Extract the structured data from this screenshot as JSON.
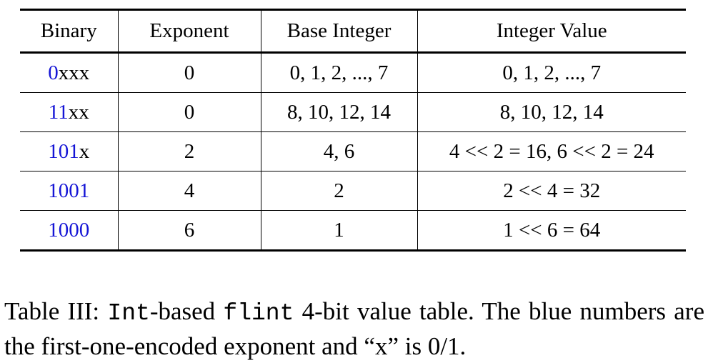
{
  "table": {
    "headers": [
      "Binary",
      "Exponent",
      "Base Integer",
      "Integer Value"
    ],
    "rows": [
      {
        "binary_prefix": "0",
        "binary_suffix": "xxx",
        "exponent": "0",
        "base_integer": "0, 1, 2, ..., 7",
        "integer_value": "0, 1, 2, ..., 7"
      },
      {
        "binary_prefix": "11",
        "binary_suffix": "xx",
        "exponent": "0",
        "base_integer": "8, 10, 12, 14",
        "integer_value": "8, 10, 12, 14"
      },
      {
        "binary_prefix": "101",
        "binary_suffix": "x",
        "exponent": "2",
        "base_integer": "4, 6",
        "integer_value": "4 << 2 = 16, 6 << 2 = 24"
      },
      {
        "binary_prefix": "1001",
        "binary_suffix": "",
        "exponent": "4",
        "base_integer": "2",
        "integer_value": "2 << 4 = 32"
      },
      {
        "binary_prefix": "1000",
        "binary_suffix": "",
        "exponent": "6",
        "base_integer": "1",
        "integer_value": "1 << 6 = 64"
      }
    ],
    "colors": {
      "exponent_prefix": "#1515d6"
    }
  },
  "caption": {
    "label": "Table III:",
    "code1": "Int",
    "text1": "-based ",
    "code2": "flint",
    "text2": " 4-bit value table. The blue numbers are the first-one-encoded exponent and “x” is 0/1."
  }
}
